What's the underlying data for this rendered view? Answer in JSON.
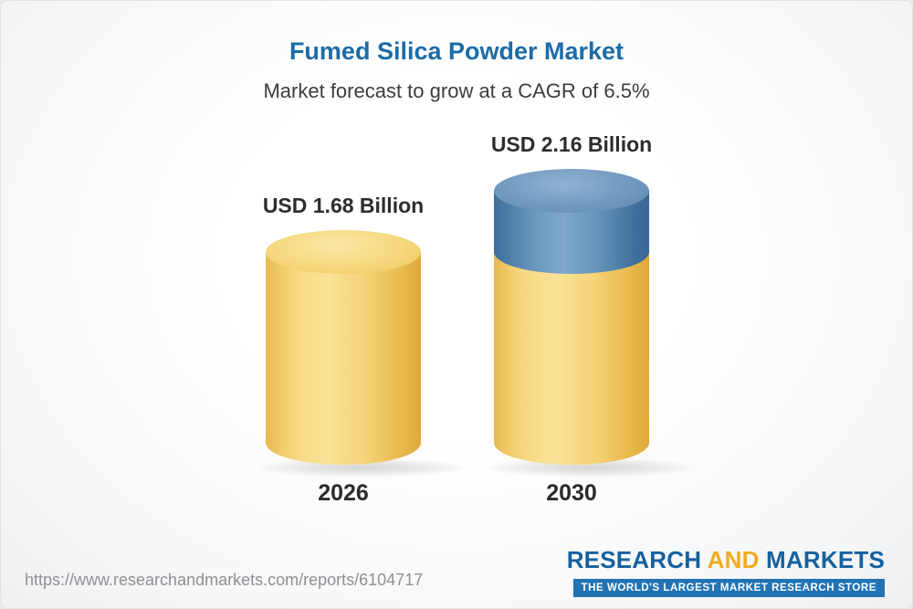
{
  "header": {
    "title": "Fumed Silica Powder Market",
    "subtitle": "Market forecast to grow at a CAGR of 6.5%"
  },
  "chart_data": {
    "type": "bar",
    "title": "Fumed Silica Powder Market",
    "subtitle": "Market forecast to grow at a CAGR of 6.5%",
    "categories": [
      "2026",
      "2030"
    ],
    "values": [
      1.68,
      2.16
    ],
    "value_labels": [
      "USD 1.68 Billion",
      "USD 2.16 Billion"
    ],
    "unit": "USD Billion",
    "cagr_percent": 6.5,
    "ylim": [
      0,
      2.16
    ],
    "bar_style": "3d-cylinder",
    "colors": {
      "base_segment": "#F3CF6E",
      "growth_segment": "#4E80AE",
      "title_text": "#1B6CA8",
      "label_text": "#2D2D2D"
    },
    "notes": "2030 cylinder shows the 2026 base value in yellow plus incremental growth (0.48) as a blue top segment"
  },
  "footer": {
    "source_url": "https://www.researchandmarkets.com/reports/6104717",
    "logo": {
      "word1": "RESEARCH",
      "word2": "AND",
      "word3": "MARKETS",
      "tagline": "THE WORLD'S LARGEST MARKET RESEARCH STORE"
    }
  }
}
